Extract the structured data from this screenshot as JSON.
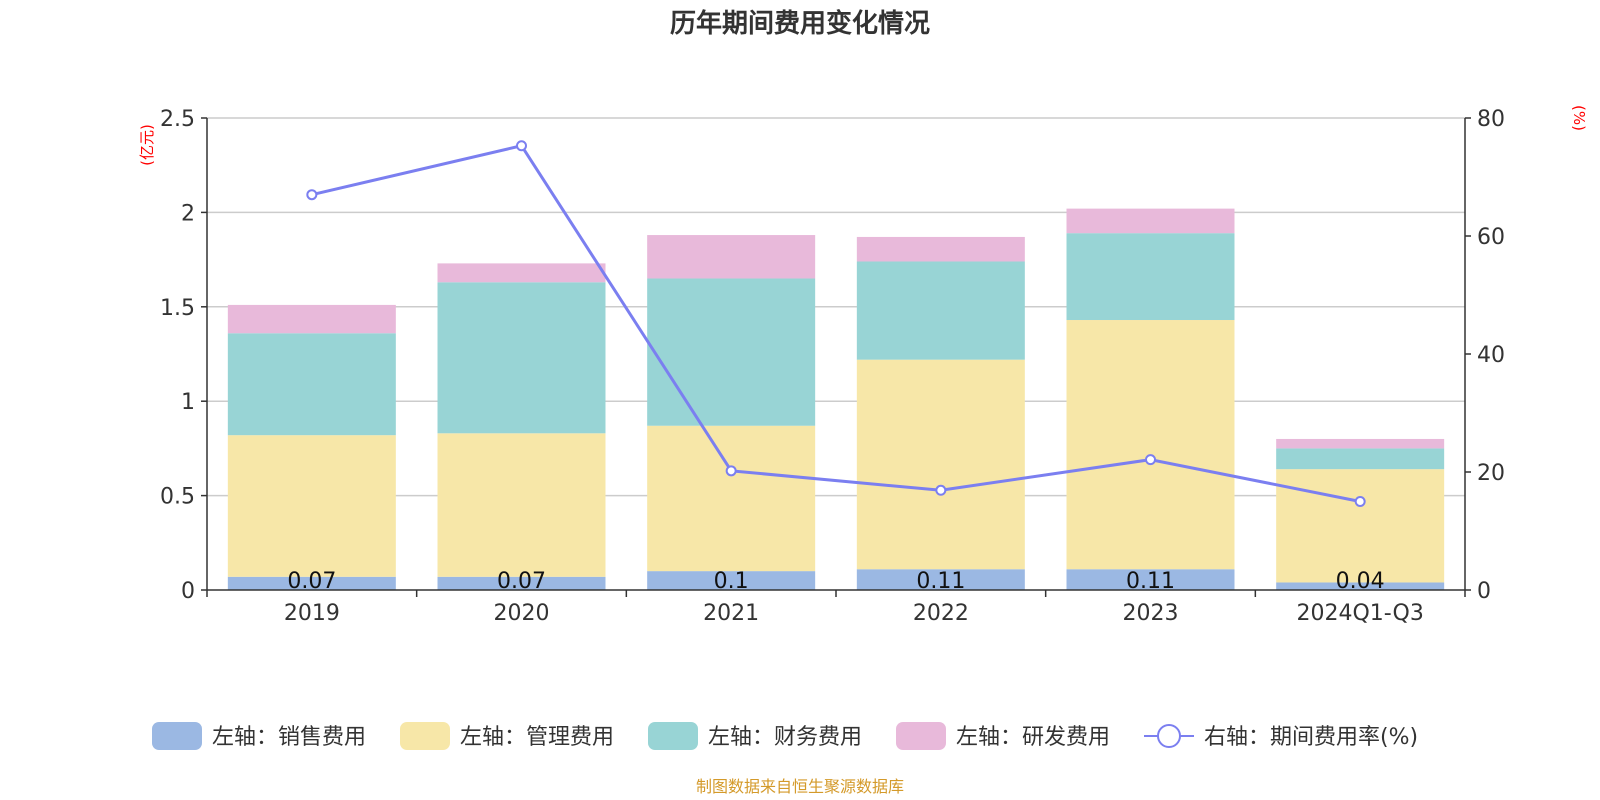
{
  "chart_data": {
    "type": "bar",
    "stacked": true,
    "title": "历年期间费用变化情况",
    "categories": [
      "2019",
      "2020",
      "2021",
      "2022",
      "2023",
      "2024Q1-Q3"
    ],
    "y_left": {
      "unit": "(亿元)",
      "ylim": [
        0,
        2.5
      ],
      "ticks": [
        "0",
        "0.5",
        "1",
        "1.5",
        "2",
        "2.5"
      ]
    },
    "y_right": {
      "unit": "(%)",
      "ylim": [
        0,
        80
      ],
      "ticks": [
        "0",
        "20",
        "40",
        "60",
        "80"
      ]
    },
    "grid": true,
    "series": [
      {
        "name": "左轴：销售费用",
        "axis": "left",
        "color": "#9bb8e3",
        "values": [
          0.07,
          0.07,
          0.1,
          0.11,
          0.11,
          0.04
        ],
        "labels": [
          "0.07",
          "0.07",
          "0.1",
          "0.11",
          "0.11",
          "0.04"
        ]
      },
      {
        "name": "左轴：管理费用",
        "axis": "left",
        "color": "#f7e7a8",
        "values": [
          0.75,
          0.76,
          0.77,
          1.11,
          1.32,
          0.6
        ]
      },
      {
        "name": "左轴：财务费用",
        "axis": "left",
        "color": "#98d4d5",
        "values": [
          0.54,
          0.8,
          0.78,
          0.52,
          0.46,
          0.11
        ]
      },
      {
        "name": "左轴：研发费用",
        "axis": "left",
        "color": "#e8b9da",
        "values": [
          0.15,
          0.1,
          0.23,
          0.13,
          0.13,
          0.05
        ]
      },
      {
        "name": "右轴：期间费用率(%)",
        "axis": "right",
        "type": "line",
        "color": "#7b7ff0",
        "values": [
          67,
          75.3,
          20.2,
          16.9,
          22.1,
          15
        ]
      }
    ],
    "legend_position": "bottom",
    "source": "制图数据来自恒生聚源数据库"
  }
}
